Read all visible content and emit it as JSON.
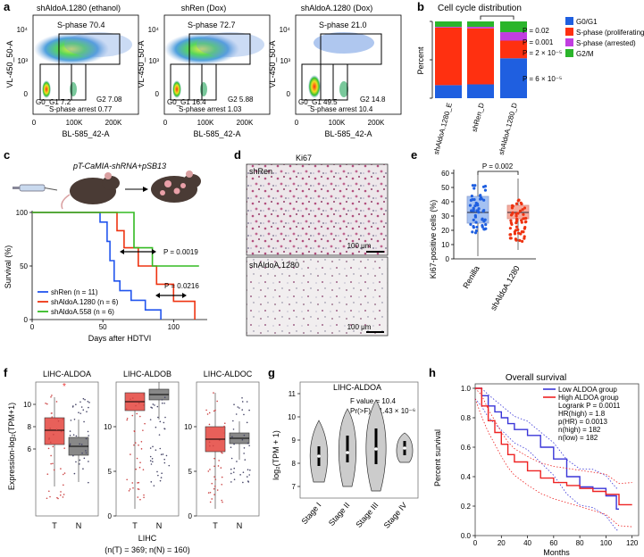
{
  "panel_letters": {
    "a": "a",
    "b": "b",
    "c": "c",
    "d": "d",
    "e": "e",
    "f": "f",
    "g": "g",
    "h": "h"
  },
  "panel_a": {
    "x_axis": "BL-585_42-A",
    "y_axis": "VL-450_50-A",
    "y_ticks": [
      "10⁴",
      "10³",
      "0"
    ],
    "x_ticks": [
      "0",
      "100K",
      "200K"
    ],
    "plots": [
      {
        "title": "shAldoA.1280 (ethanol)",
        "s_phase": "S-phase 70.4",
        "g0g1": "G0_G1 7.2",
        "g2": "G2 7.08",
        "arrest": "S-phase arrest 0.77"
      },
      {
        "title": "shRen (Dox)",
        "s_phase": "S-phase 72.7",
        "g0g1": "G0_G1 16.4",
        "g2": "G2 5.88",
        "arrest": "S-phase arrest 1.03"
      },
      {
        "title": "shAldoA.1280 (Dox)",
        "s_phase": "S-phase 21.0",
        "g0g1": "G0_G1 49.5",
        "g2": "G2 14.8",
        "arrest": "S-phase arrest 10.4"
      }
    ]
  },
  "panel_b": {
    "title": "Cell cycle distribution",
    "ylabel": "Percent",
    "pvals": [
      "P = 0.02",
      "P = 0.001",
      "P = 2 × 10⁻⁵",
      "P = 6 × 10⁻⁵"
    ],
    "legend": [
      {
        "label": "G0/G1",
        "color": "#1f5fe0"
      },
      {
        "label": "S-phase (proliferating)",
        "color": "#ff3010"
      },
      {
        "label": "S-phase (arrested)",
        "color": "#c13ee0"
      },
      {
        "label": "G2/M",
        "color": "#2bb52b"
      }
    ]
  },
  "panel_c": {
    "construct": "pT-CaMIA-shRNA+pSB13",
    "ylabel": "Survival (%)",
    "xlabel": "Days after HDTVI",
    "p1": "P = 0.0019",
    "p2": "P = 0.0216",
    "legend": [
      {
        "label": "shRen (n = 11)",
        "color": "#2255ee"
      },
      {
        "label": "shAldoA.1280 (n = 6)",
        "color": "#ee3311"
      },
      {
        "label": "shAldoA.558 (n = 6)",
        "color": "#33bb22"
      }
    ]
  },
  "panel_d": {
    "title": "Ki67",
    "top_label": "shRen",
    "bottom_label": "shAldoA.1280",
    "scale": "100 μm"
  },
  "panel_e": {
    "ylabel": "Ki67-positive cells (%)",
    "pval": "P = 0.002",
    "groups": [
      "Renilla",
      "shAldoA.1280"
    ]
  },
  "panel_f": {
    "titles": [
      "LIHC-ALDOA",
      "LIHC-ALDOB",
      "LIHC-ALDOC"
    ],
    "ylabel": "Expression-log₂(TPM+1)",
    "groups": [
      "T",
      "N"
    ],
    "footer1": "LIHC",
    "footer2": "(n(T) = 369; n(N) = 160)"
  },
  "panel_g": {
    "title": "LIHC-ALDOA",
    "fvalue": "F value = 10.4",
    "pr": "Pr(>F) = 1.43 × 10⁻⁶",
    "ylabel": "log₂(TPM + 1)",
    "stages": [
      "Stage I",
      "Stage II",
      "Stage III",
      "Stage IV"
    ]
  },
  "panel_h": {
    "title": "Overall survival",
    "ylabel": "Percent survival",
    "xlabel": "Months",
    "legend": [
      "Low ALDOA group",
      "High ALDOA group"
    ],
    "stats": [
      "Logrank P = 0.0011",
      "HR(high) = 1.8",
      "p(HR) = 0.0013",
      "n(high) = 182",
      "n(low) = 182"
    ]
  },
  "chart_data": [
    {
      "type": "bar",
      "title": "Cell cycle distribution",
      "ylabel": "Percent",
      "categories": [
        "shAldoA.1280_E",
        "shRen_D",
        "shAldoA.1280_D"
      ],
      "series": [
        {
          "name": "G0/G1",
          "values": [
            17,
            18,
            52
          ]
        },
        {
          "name": "S-phase (proliferating)",
          "values": [
            75,
            73,
            23
          ]
        },
        {
          "name": "S-phase (arrested)",
          "values": [
            1,
            2,
            11
          ]
        },
        {
          "name": "G2/M",
          "values": [
            7,
            7,
            14
          ]
        }
      ],
      "ylim": [
        0,
        100
      ]
    },
    {
      "type": "line",
      "title": "Survival",
      "xlabel": "Days after HDTVI",
      "ylabel": "Survival (%)",
      "xlim": [
        0,
        120
      ],
      "ylim": [
        0,
        100
      ],
      "x_ticks": [
        0,
        50,
        100
      ],
      "y_ticks": [
        0,
        50,
        100
      ],
      "series": [
        {
          "name": "shRen (n = 11)",
          "points": [
            [
              0,
              100
            ],
            [
              48,
              100
            ],
            [
              48,
              91
            ],
            [
              53,
              91
            ],
            [
              53,
              73
            ],
            [
              55,
              73
            ],
            [
              55,
              55
            ],
            [
              58,
              55
            ],
            [
              58,
              36
            ],
            [
              62,
              36
            ],
            [
              62,
              27
            ],
            [
              70,
              27
            ],
            [
              70,
              18
            ],
            [
              80,
              18
            ],
            [
              80,
              9
            ],
            [
              91,
              9
            ],
            [
              91,
              0
            ]
          ]
        },
        {
          "name": "shAldoA.1280 (n = 6)",
          "points": [
            [
              0,
              100
            ],
            [
              60,
              100
            ],
            [
              60,
              83
            ],
            [
              65,
              83
            ],
            [
              65,
              67
            ],
            [
              75,
              67
            ],
            [
              75,
              50
            ],
            [
              88,
              50
            ],
            [
              88,
              33
            ],
            [
              100,
              33
            ],
            [
              100,
              17
            ],
            [
              115,
              17
            ],
            [
              115,
              0
            ]
          ]
        },
        {
          "name": "shAldoA.558 (n = 6)",
          "points": [
            [
              0,
              100
            ],
            [
              72,
              100
            ],
            [
              72,
              67
            ],
            [
              85,
              67
            ],
            [
              85,
              50
            ],
            [
              118,
              50
            ]
          ]
        }
      ]
    },
    {
      "type": "line",
      "title": "Overall survival",
      "xlabel": "Months",
      "ylabel": "Percent survival",
      "xlim": [
        0,
        125
      ],
      "ylim": [
        0,
        1.0
      ],
      "x_ticks": [
        0,
        20,
        40,
        60,
        80,
        100,
        120
      ],
      "y_ticks": [
        0,
        0.2,
        0.4,
        0.6,
        0.8,
        1.0
      ],
      "series": [
        {
          "name": "Low ALDOA group",
          "points": [
            [
              0,
              1.0
            ],
            [
              5,
              0.95
            ],
            [
              10,
              0.88
            ],
            [
              15,
              0.84
            ],
            [
              20,
              0.8
            ],
            [
              25,
              0.76
            ],
            [
              30,
              0.72
            ],
            [
              40,
              0.68
            ],
            [
              50,
              0.6
            ],
            [
              60,
              0.52
            ],
            [
              70,
              0.4
            ],
            [
              80,
              0.33
            ],
            [
              90,
              0.32
            ],
            [
              100,
              0.27
            ],
            [
              108,
              0.18
            ],
            [
              110,
              0.18
            ]
          ]
        },
        {
          "name": "High ALDOA group",
          "points": [
            [
              0,
              1.0
            ],
            [
              5,
              0.88
            ],
            [
              10,
              0.78
            ],
            [
              15,
              0.7
            ],
            [
              20,
              0.62
            ],
            [
              25,
              0.55
            ],
            [
              30,
              0.5
            ],
            [
              40,
              0.44
            ],
            [
              50,
              0.39
            ],
            [
              60,
              0.36
            ],
            [
              70,
              0.34
            ],
            [
              80,
              0.32
            ],
            [
              90,
              0.3
            ],
            [
              100,
              0.28
            ],
            [
              110,
              0.21
            ],
            [
              120,
              0.21
            ]
          ]
        }
      ]
    }
  ]
}
